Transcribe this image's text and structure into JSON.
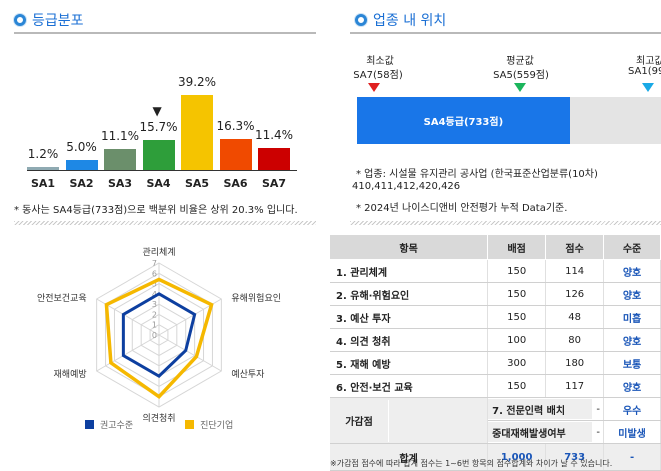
{
  "grade_dist": {
    "title": "등급분포",
    "note": "* 동사는 SA4등급(733점)으로 백분위 비율은 상위 20.3% 입니다."
  },
  "chart_data": {
    "type": "bar",
    "categories": [
      "SA1",
      "SA2",
      "SA3",
      "SA4",
      "SA5",
      "SA6",
      "SA7"
    ],
    "values": [
      1.2,
      5.0,
      11.1,
      15.7,
      39.2,
      16.3,
      11.4
    ],
    "value_labels": [
      "1.2%",
      "5.0%",
      "11.1%",
      "15.7%",
      "39.2%",
      "16.3%",
      "11.4%"
    ],
    "colors": [
      "#8faab2",
      "#1e88e5",
      "#6b8f6b",
      "#2e9e3a",
      "#f5c400",
      "#f04a00",
      "#cc0000"
    ],
    "highlight": "SA4",
    "marker": "▼"
  },
  "industry": {
    "title": "업종 내 위치",
    "min_label": "최소값",
    "min_value": "SA7(58점)",
    "avg_label": "평균값",
    "avg_value": "SA5(559점)",
    "max_label": "최고값",
    "max_value": "SA1(99",
    "bar_label": "SA4등급(733점)",
    "position_fraction": 0.7,
    "note1": "* 업종: 시설물 유지관리 공사업 (한국표준산업분류(10차)",
    "note1_cont": "410,411,412,420,426",
    "note2": "* 2024년 나이스디앤비 안전평가 누적 Data기준."
  },
  "radar": {
    "axes": [
      "관리체계",
      "유해위험요인",
      "예산투자",
      "의견청취",
      "재해예방",
      "안전보건교육"
    ],
    "ticks": [
      "7",
      "6",
      "5",
      "4",
      "3",
      "2",
      "1",
      "0"
    ],
    "max": 7,
    "series": [
      {
        "name": "권고수준",
        "color": "#0d3fa0",
        "values": [
          4,
          4,
          3,
          4,
          4,
          4
        ]
      },
      {
        "name": "진단기업",
        "color": "#f5b800",
        "values": [
          5.4,
          5.9,
          4.2,
          6.0,
          5.4,
          5.9
        ]
      }
    ]
  },
  "table": {
    "headers": [
      "항목",
      "배점",
      "점수",
      "수준"
    ],
    "rows": [
      {
        "item": "1. 관리체계",
        "max": "150",
        "score": "114",
        "level": "양호"
      },
      {
        "item": "2. 유해·위험요인",
        "max": "150",
        "score": "126",
        "level": "양호"
      },
      {
        "item": "3. 예산 투자",
        "max": "150",
        "score": "48",
        "level": "미흡"
      },
      {
        "item": "4. 의견 청취",
        "max": "100",
        "score": "80",
        "level": "양호"
      },
      {
        "item": "5. 재해 예방",
        "max": "300",
        "score": "180",
        "level": "보통"
      },
      {
        "item": "6. 안전·보건 교육",
        "max": "150",
        "score": "117",
        "level": "양호"
      }
    ],
    "bonus_group": "가감점",
    "bonus_rows": [
      {
        "item": "7. 전문인력 배치",
        "value": "-",
        "level": "우수"
      },
      {
        "item": "중대재해발생여부",
        "value": "-",
        "level": "미발생"
      }
    ],
    "total": {
      "label": "합계",
      "max": "1,000",
      "score": "733",
      "level": "-"
    },
    "footnote": "※가감점 점수에 따라 합계 점수는 1~6번 항목의 점수합계와 차이가 날 수 있습니다."
  }
}
